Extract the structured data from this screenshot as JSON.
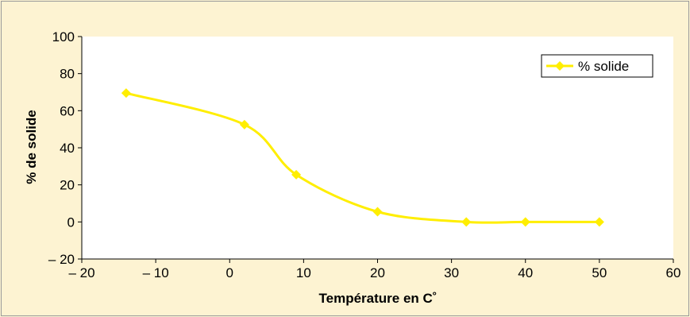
{
  "chart_data": {
    "type": "line",
    "xlabel": "Température en C˚",
    "ylabel": "% de solide",
    "xlim": [
      -20,
      60
    ],
    "ylim": [
      -20,
      100
    ],
    "xticks": [
      -20,
      -10,
      0,
      10,
      20,
      30,
      40,
      50,
      60
    ],
    "yticks": [
      -20,
      0,
      20,
      40,
      60,
      80,
      100
    ],
    "xtick_labels": [
      "– 20",
      "– 10",
      "0",
      "10",
      "20",
      "30",
      "40",
      "50",
      "60"
    ],
    "ytick_labels": [
      "– 20",
      "0",
      "20",
      "40",
      "60",
      "80",
      "100"
    ],
    "legend_position": "top-right",
    "grid": false,
    "series": [
      {
        "name": "% solide",
        "color": "#ffee00",
        "marker": "diamond",
        "smooth": true,
        "x": [
          -14,
          2,
          9,
          20,
          32,
          40,
          50
        ],
        "y": [
          69.5,
          52.5,
          25.5,
          5.5,
          0,
          0,
          0
        ]
      }
    ]
  }
}
